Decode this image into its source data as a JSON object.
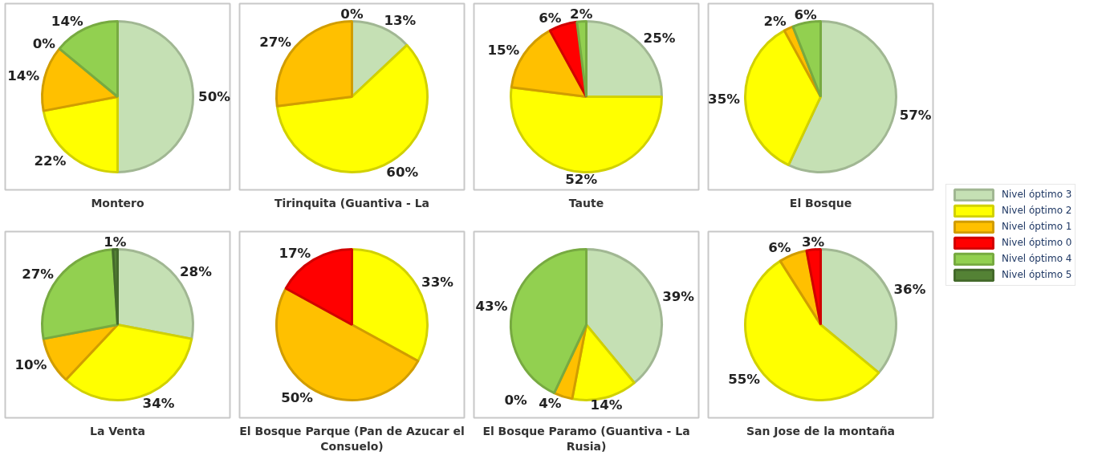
{
  "chart_data": [
    {
      "type": "pie",
      "title": "Montero",
      "legend": "right",
      "categories": [
        "Nivel óptimo 3",
        "Nivel óptimo 2",
        "Nivel óptimo 1",
        "Nivel óptimo 0",
        "Nivel óptimo 4",
        "Nivel óptimo 5"
      ],
      "colors": [
        "#c5e0b4",
        "#ffff00",
        "#ffc000",
        "#ff0000",
        "#92d050",
        "#548235"
      ],
      "values": [
        50,
        22,
        14,
        0,
        14,
        null
      ],
      "value_labels": [
        "50%",
        "22%",
        "14%",
        "0%",
        "14%",
        null
      ]
    },
    {
      "type": "pie",
      "title": "Tirinquita (Guantiva - La",
      "colors": [
        "#c5e0b4",
        "#ffff00",
        "#ffc000",
        "#ff0000",
        "#92d050",
        "#548235"
      ],
      "values": [
        13,
        60,
        27,
        0,
        null,
        null
      ],
      "value_labels": [
        "13%",
        "60%",
        "27%",
        "0%",
        null,
        null
      ]
    },
    {
      "type": "pie",
      "title": "Taute",
      "colors": [
        "#c5e0b4",
        "#ffff00",
        "#ffc000",
        "#ff0000",
        "#92d050",
        "#548235"
      ],
      "values": [
        25,
        52,
        15,
        6,
        2,
        null
      ],
      "value_labels": [
        "25%",
        "52%",
        "15%",
        "6%",
        "2%",
        null
      ]
    },
    {
      "type": "pie",
      "title": "El Bosque",
      "colors": [
        "#c5e0b4",
        "#ffff00",
        "#ffc000",
        "#ff0000",
        "#92d050",
        "#548235"
      ],
      "values": [
        57,
        35,
        2,
        null,
        6,
        null
      ],
      "value_labels": [
        "57%",
        "35%",
        "2%",
        null,
        "6%",
        null
      ]
    },
    {
      "type": "pie",
      "title": "La Venta",
      "colors": [
        "#c5e0b4",
        "#ffff00",
        "#ffc000",
        "#ff0000",
        "#92d050",
        "#548235"
      ],
      "values": [
        28,
        34,
        10,
        null,
        27,
        1
      ],
      "value_labels": [
        "28%",
        "34%",
        "10%",
        null,
        "27%",
        "1%"
      ]
    },
    {
      "type": "pie",
      "title": "El Bosque Parque (Pan de Azucar el Consuelo)",
      "colors": [
        "#c5e0b4",
        "#ffff00",
        "#ffc000",
        "#ff0000",
        "#92d050",
        "#548235"
      ],
      "values": [
        null,
        33,
        50,
        17,
        null,
        null
      ],
      "value_labels": [
        null,
        "33%",
        "50%",
        "17%",
        null,
        null
      ]
    },
    {
      "type": "pie",
      "title": "El Bosque Paramo (Guantiva - La Rusia)",
      "colors": [
        "#c5e0b4",
        "#ffff00",
        "#ffc000",
        "#ff0000",
        "#92d050",
        "#548235"
      ],
      "values": [
        39,
        14,
        4,
        0,
        43,
        null
      ],
      "value_labels": [
        "39%",
        "14%",
        "4%",
        "0%",
        "43%",
        null
      ]
    },
    {
      "type": "pie",
      "title": "San Jose de la montaña",
      "colors": [
        "#c5e0b4",
        "#ffff00",
        "#ffc000",
        "#ff0000",
        "#92d050",
        "#548235"
      ],
      "values": [
        36,
        55,
        6,
        3,
        null,
        null
      ],
      "value_labels": [
        "36%",
        "55%",
        "6%",
        "3%",
        null,
        null
      ]
    }
  ]
}
